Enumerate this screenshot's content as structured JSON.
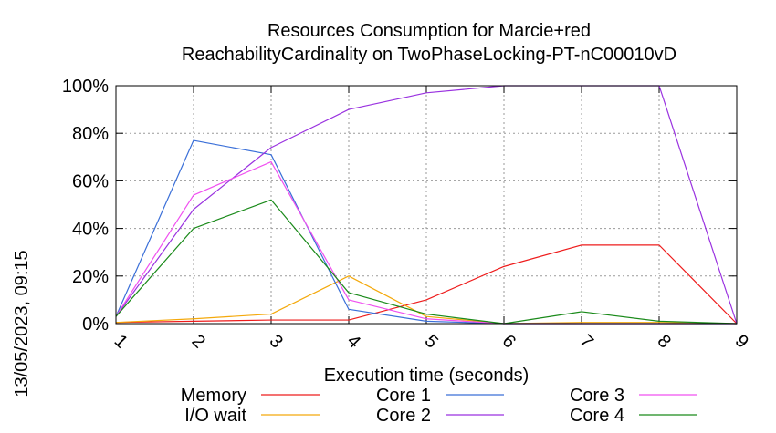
{
  "chart_data": {
    "type": "line",
    "title": "Resources Consumption for Marcie+red",
    "subtitle": "ReachabilityCardinality on TwoPhaseLocking-PT-nC00010vD",
    "xlabel": "Execution time (seconds)",
    "ylabel": "",
    "x": [
      1,
      2,
      3,
      4,
      5,
      6,
      7,
      8,
      9
    ],
    "x_tick_labels": [
      "1",
      "2",
      "3",
      "4",
      "5",
      "6",
      "7",
      "8",
      "9"
    ],
    "y_tick_labels": [
      "0%",
      "20%",
      "40%",
      "60%",
      "80%",
      "100%"
    ],
    "xlim": [
      1,
      9
    ],
    "ylim": [
      0,
      100
    ],
    "grid": true,
    "legend_position": "bottom",
    "series": [
      {
        "name": "Memory",
        "color": "#ee1c1c",
        "values": [
          0.5,
          1,
          1.5,
          1.5,
          10,
          24,
          33,
          33,
          0
        ]
      },
      {
        "name": "I/O wait",
        "color": "#f4a90c",
        "values": [
          0.5,
          2,
          4,
          20,
          3,
          0,
          0.5,
          0.5,
          0
        ]
      },
      {
        "name": "Core 1",
        "color": "#3a6fd8",
        "values": [
          3,
          77,
          71,
          6,
          1,
          0,
          0,
          0,
          0
        ]
      },
      {
        "name": "Core 2",
        "color": "#9a32e0",
        "values": [
          3,
          48,
          74,
          90,
          97,
          100,
          100,
          100,
          0
        ]
      },
      {
        "name": "Core 3",
        "color": "#f050f0",
        "values": [
          3,
          54,
          68,
          10,
          2,
          0,
          0,
          0,
          0
        ]
      },
      {
        "name": "Core 4",
        "color": "#1a8a1a",
        "values": [
          3,
          40,
          52,
          13,
          4,
          0,
          5,
          1,
          0
        ]
      }
    ]
  },
  "timestamp": "13/05/2023, 09:15"
}
